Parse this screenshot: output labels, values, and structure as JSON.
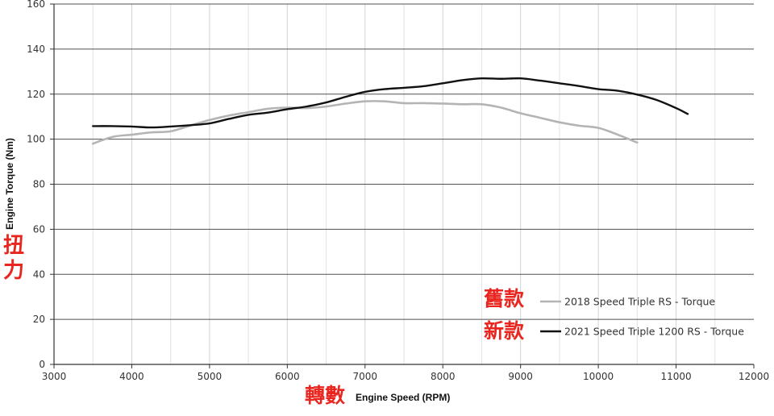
{
  "chart_data": {
    "type": "line",
    "title": "",
    "xlabel": "Engine Speed (RPM)",
    "ylabel": "Engine Torque (Nm)",
    "xlim": [
      3000,
      12000
    ],
    "ylim": [
      0,
      160
    ],
    "xticks": [
      3000,
      4000,
      5000,
      6000,
      7000,
      8000,
      9000,
      10000,
      11000,
      12000
    ],
    "yticks": [
      0,
      20,
      40,
      60,
      80,
      100,
      120,
      140,
      160
    ],
    "grid": true,
    "legend_position": "bottom-right",
    "series": [
      {
        "name": "2018 Speed Triple RS - Torque",
        "color": "#b4b4b4",
        "x": [
          3500,
          3750,
          4000,
          4250,
          4500,
          4750,
          5000,
          5250,
          5500,
          5750,
          6000,
          6250,
          6500,
          6750,
          7000,
          7250,
          7500,
          7750,
          8000,
          8250,
          8500,
          8750,
          9000,
          9250,
          9500,
          9750,
          10000,
          10250,
          10500
        ],
        "y": [
          98,
          101,
          102,
          103,
          103.5,
          106,
          108.5,
          110.5,
          112,
          113.5,
          114,
          113.8,
          114.5,
          115.8,
          116.8,
          116.8,
          116,
          116,
          115.8,
          115.5,
          115.5,
          114,
          111.5,
          109.5,
          107.5,
          106,
          105,
          102,
          98.5
        ]
      },
      {
        "name": "2021 Speed Triple 1200 RS - Torque",
        "color": "#111111",
        "x": [
          3500,
          3750,
          4000,
          4250,
          4500,
          4750,
          5000,
          5250,
          5500,
          5750,
          6000,
          6250,
          6500,
          6750,
          7000,
          7250,
          7500,
          7750,
          8000,
          8250,
          8500,
          8750,
          9000,
          9250,
          9500,
          9750,
          10000,
          10250,
          10500,
          10750,
          11000,
          11150
        ],
        "y": [
          105.8,
          105.8,
          105.6,
          105.2,
          105.6,
          106.2,
          107,
          109,
          110.8,
          111.8,
          113.3,
          114.5,
          116.3,
          118.8,
          121,
          122.2,
          122.8,
          123.5,
          124.8,
          126.2,
          127,
          126.8,
          127,
          126,
          124.8,
          123.6,
          122.2,
          121.5,
          119.8,
          117.4,
          113.8,
          111.2
        ]
      }
    ]
  },
  "annotations": {
    "y_label_cjk": "扭力",
    "x_label_cjk": "轉數",
    "old_label_cjk": "舊款",
    "new_label_cjk": "新款"
  }
}
